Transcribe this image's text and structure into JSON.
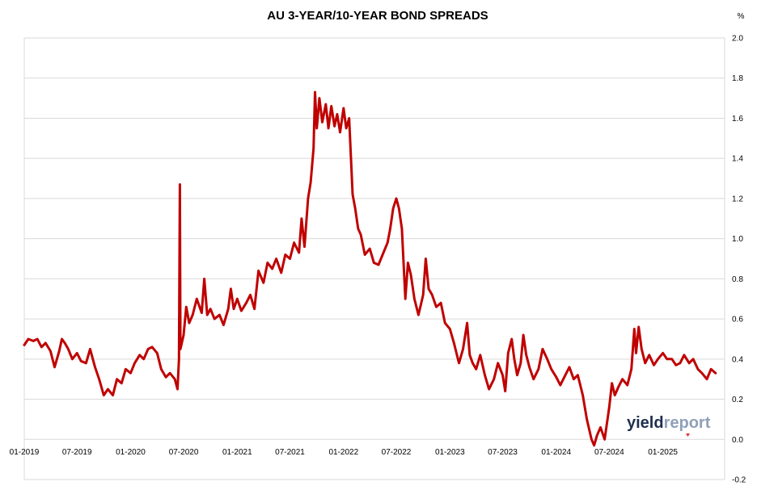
{
  "chart_data": {
    "type": "line",
    "title": "AU 3-YEAR/10-YEAR BOND SPREADS",
    "y_unit": "%",
    "xlabel": "",
    "ylabel": "",
    "xlim": [
      "2019-01",
      "2025-08"
    ],
    "ylim": [
      -0.2,
      2.0
    ],
    "y_ticks": [
      -0.2,
      0.0,
      0.2,
      0.4,
      0.6,
      0.8,
      1.0,
      1.2,
      1.4,
      1.6,
      1.8,
      2.0
    ],
    "y_tick_labels": [
      "-0.2",
      "0.0",
      "0.2",
      "0.4",
      "0.6",
      "0.8",
      "1.0",
      "1.2",
      "1.4",
      "1.6",
      "1.8",
      "2.0"
    ],
    "x_ticks": [
      "2019-01",
      "2019-07",
      "2020-01",
      "2020-07",
      "2021-01",
      "2021-07",
      "2022-01",
      "2022-07",
      "2023-01",
      "2023-07",
      "2024-01",
      "2024-07",
      "2025-01"
    ],
    "x_tick_labels": [
      "01-2019",
      "07-2019",
      "01-2020",
      "07-2020",
      "01-2021",
      "07-2021",
      "01-2022",
      "07-2022",
      "01-2023",
      "07-2023",
      "01-2024",
      "07-2024",
      "01-2025"
    ],
    "grid": "horizontal",
    "legend": "none",
    "series": [
      {
        "color": "#c00000",
        "points": [
          [
            "2019-01-01",
            0.47
          ],
          [
            "2019-01-15",
            0.5
          ],
          [
            "2019-02-01",
            0.49
          ],
          [
            "2019-02-15",
            0.5
          ],
          [
            "2019-03-01",
            0.46
          ],
          [
            "2019-03-15",
            0.48
          ],
          [
            "2019-04-01",
            0.44
          ],
          [
            "2019-04-15",
            0.36
          ],
          [
            "2019-05-01",
            0.44
          ],
          [
            "2019-05-10",
            0.5
          ],
          [
            "2019-05-20",
            0.48
          ],
          [
            "2019-06-01",
            0.45
          ],
          [
            "2019-06-15",
            0.4
          ],
          [
            "2019-07-01",
            0.43
          ],
          [
            "2019-07-15",
            0.39
          ],
          [
            "2019-08-01",
            0.38
          ],
          [
            "2019-08-15",
            0.45
          ],
          [
            "2019-09-01",
            0.36
          ],
          [
            "2019-09-15",
            0.3
          ],
          [
            "2019-10-01",
            0.22
          ],
          [
            "2019-10-15",
            0.25
          ],
          [
            "2019-11-01",
            0.22
          ],
          [
            "2019-11-15",
            0.3
          ],
          [
            "2019-12-01",
            0.28
          ],
          [
            "2019-12-15",
            0.35
          ],
          [
            "2020-01-01",
            0.33
          ],
          [
            "2020-01-15",
            0.38
          ],
          [
            "2020-02-01",
            0.42
          ],
          [
            "2020-02-15",
            0.4
          ],
          [
            "2020-03-01",
            0.45
          ],
          [
            "2020-03-15",
            0.46
          ],
          [
            "2020-04-01",
            0.43
          ],
          [
            "2020-04-15",
            0.35
          ],
          [
            "2020-05-01",
            0.31
          ],
          [
            "2020-05-15",
            0.33
          ],
          [
            "2020-06-01",
            0.3
          ],
          [
            "2020-06-10",
            0.25
          ],
          [
            "2020-06-15",
            0.4
          ],
          [
            "2020-06-18",
            1.27
          ],
          [
            "2020-06-20",
            0.45
          ],
          [
            "2020-07-01",
            0.52
          ],
          [
            "2020-07-10",
            0.66
          ],
          [
            "2020-07-20",
            0.58
          ],
          [
            "2020-08-01",
            0.62
          ],
          [
            "2020-08-15",
            0.7
          ],
          [
            "2020-09-01",
            0.63
          ],
          [
            "2020-09-10",
            0.8
          ],
          [
            "2020-09-20",
            0.62
          ],
          [
            "2020-10-01",
            0.65
          ],
          [
            "2020-10-15",
            0.6
          ],
          [
            "2020-11-01",
            0.62
          ],
          [
            "2020-11-15",
            0.57
          ],
          [
            "2020-12-01",
            0.65
          ],
          [
            "2020-12-10",
            0.75
          ],
          [
            "2020-12-20",
            0.65
          ],
          [
            "2021-01-01",
            0.7
          ],
          [
            "2021-01-15",
            0.64
          ],
          [
            "2021-02-01",
            0.68
          ],
          [
            "2021-02-15",
            0.72
          ],
          [
            "2021-03-01",
            0.65
          ],
          [
            "2021-03-15",
            0.84
          ],
          [
            "2021-04-01",
            0.78
          ],
          [
            "2021-04-15",
            0.88
          ],
          [
            "2021-05-01",
            0.85
          ],
          [
            "2021-05-15",
            0.9
          ],
          [
            "2021-06-01",
            0.83
          ],
          [
            "2021-06-15",
            0.92
          ],
          [
            "2021-07-01",
            0.9
          ],
          [
            "2021-07-15",
            0.98
          ],
          [
            "2021-08-01",
            0.93
          ],
          [
            "2021-08-10",
            1.1
          ],
          [
            "2021-08-20",
            0.96
          ],
          [
            "2021-09-01",
            1.2
          ],
          [
            "2021-09-10",
            1.28
          ],
          [
            "2021-09-20",
            1.45
          ],
          [
            "2021-09-25",
            1.73
          ],
          [
            "2021-10-01",
            1.55
          ],
          [
            "2021-10-10",
            1.7
          ],
          [
            "2021-10-20",
            1.58
          ],
          [
            "2021-11-01",
            1.67
          ],
          [
            "2021-11-10",
            1.55
          ],
          [
            "2021-11-20",
            1.66
          ],
          [
            "2021-12-01",
            1.56
          ],
          [
            "2021-12-10",
            1.62
          ],
          [
            "2021-12-20",
            1.53
          ],
          [
            "2022-01-01",
            1.65
          ],
          [
            "2022-01-10",
            1.55
          ],
          [
            "2022-01-20",
            1.6
          ],
          [
            "2022-02-01",
            1.22
          ],
          [
            "2022-02-10",
            1.15
          ],
          [
            "2022-02-20",
            1.05
          ],
          [
            "2022-03-01",
            1.02
          ],
          [
            "2022-03-15",
            0.92
          ],
          [
            "2022-04-01",
            0.95
          ],
          [
            "2022-04-15",
            0.88
          ],
          [
            "2022-05-01",
            0.87
          ],
          [
            "2022-05-15",
            0.92
          ],
          [
            "2022-06-01",
            0.98
          ],
          [
            "2022-06-10",
            1.05
          ],
          [
            "2022-06-20",
            1.15
          ],
          [
            "2022-07-01",
            1.2
          ],
          [
            "2022-07-10",
            1.15
          ],
          [
            "2022-07-20",
            1.05
          ],
          [
            "2022-08-01",
            0.7
          ],
          [
            "2022-08-10",
            0.88
          ],
          [
            "2022-08-20",
            0.82
          ],
          [
            "2022-09-01",
            0.7
          ],
          [
            "2022-09-15",
            0.62
          ],
          [
            "2022-10-01",
            0.72
          ],
          [
            "2022-10-10",
            0.9
          ],
          [
            "2022-10-20",
            0.75
          ],
          [
            "2022-11-01",
            0.72
          ],
          [
            "2022-11-15",
            0.66
          ],
          [
            "2022-12-01",
            0.68
          ],
          [
            "2022-12-15",
            0.58
          ],
          [
            "2023-01-01",
            0.55
          ],
          [
            "2023-01-15",
            0.48
          ],
          [
            "2023-02-01",
            0.38
          ],
          [
            "2023-02-15",
            0.45
          ],
          [
            "2023-03-01",
            0.58
          ],
          [
            "2023-03-10",
            0.42
          ],
          [
            "2023-03-20",
            0.38
          ],
          [
            "2023-04-01",
            0.35
          ],
          [
            "2023-04-15",
            0.42
          ],
          [
            "2023-05-01",
            0.32
          ],
          [
            "2023-05-15",
            0.25
          ],
          [
            "2023-06-01",
            0.3
          ],
          [
            "2023-06-15",
            0.38
          ],
          [
            "2023-07-01",
            0.32
          ],
          [
            "2023-07-10",
            0.24
          ],
          [
            "2023-07-20",
            0.43
          ],
          [
            "2023-08-01",
            0.5
          ],
          [
            "2023-08-10",
            0.4
          ],
          [
            "2023-08-20",
            0.32
          ],
          [
            "2023-09-01",
            0.38
          ],
          [
            "2023-09-10",
            0.52
          ],
          [
            "2023-09-20",
            0.42
          ],
          [
            "2023-10-01",
            0.36
          ],
          [
            "2023-10-15",
            0.3
          ],
          [
            "2023-11-01",
            0.35
          ],
          [
            "2023-11-15",
            0.45
          ],
          [
            "2023-12-01",
            0.4
          ],
          [
            "2023-12-15",
            0.35
          ],
          [
            "2024-01-01",
            0.31
          ],
          [
            "2024-01-15",
            0.27
          ],
          [
            "2024-02-01",
            0.32
          ],
          [
            "2024-02-15",
            0.36
          ],
          [
            "2024-03-01",
            0.3
          ],
          [
            "2024-03-15",
            0.32
          ],
          [
            "2024-04-01",
            0.22
          ],
          [
            "2024-04-15",
            0.1
          ],
          [
            "2024-05-01",
            0.0
          ],
          [
            "2024-05-10",
            -0.03
          ],
          [
            "2024-05-20",
            0.02
          ],
          [
            "2024-06-01",
            0.06
          ],
          [
            "2024-06-15",
            0.0
          ],
          [
            "2024-07-01",
            0.16
          ],
          [
            "2024-07-10",
            0.28
          ],
          [
            "2024-07-20",
            0.22
          ],
          [
            "2024-08-01",
            0.26
          ],
          [
            "2024-08-15",
            0.3
          ],
          [
            "2024-09-01",
            0.27
          ],
          [
            "2024-09-15",
            0.35
          ],
          [
            "2024-09-25",
            0.55
          ],
          [
            "2024-10-01",
            0.43
          ],
          [
            "2024-10-10",
            0.56
          ],
          [
            "2024-10-20",
            0.45
          ],
          [
            "2024-11-01",
            0.38
          ],
          [
            "2024-11-15",
            0.42
          ],
          [
            "2024-12-01",
            0.37
          ],
          [
            "2024-12-15",
            0.4
          ],
          [
            "2025-01-01",
            0.43
          ],
          [
            "2025-01-15",
            0.4
          ],
          [
            "2025-02-01",
            0.4
          ],
          [
            "2025-02-15",
            0.37
          ],
          [
            "2025-03-01",
            0.38
          ],
          [
            "2025-03-15",
            0.42
          ],
          [
            "2025-04-01",
            0.38
          ],
          [
            "2025-04-15",
            0.4
          ],
          [
            "2025-05-01",
            0.35
          ],
          [
            "2025-05-15",
            0.33
          ],
          [
            "2025-06-01",
            0.3
          ],
          [
            "2025-06-15",
            0.35
          ],
          [
            "2025-07-01",
            0.33
          ]
        ]
      }
    ]
  },
  "logo": {
    "part1": "yield",
    "part2": "report"
  }
}
